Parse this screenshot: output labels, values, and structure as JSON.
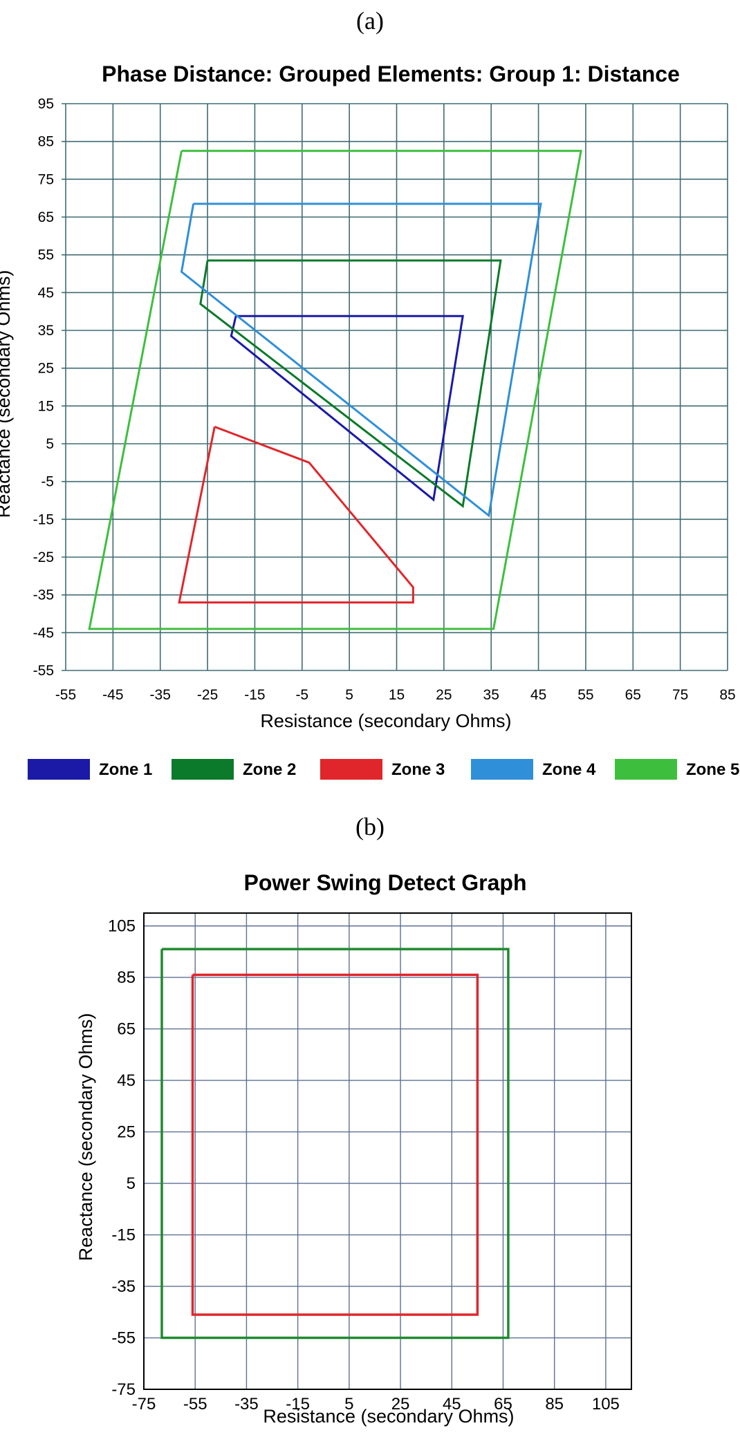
{
  "panels": {
    "a_label": "(a)",
    "b_label": "(b)"
  },
  "chart_data": [
    {
      "type": "line",
      "title": "Phase Distance: Grouped Elements: Group 1: Distance",
      "xlabel": "Resistance (secondary Ohms)",
      "ylabel": "Reactance (secondary Ohms)",
      "xlim": [
        -55,
        85
      ],
      "ylim": [
        -55,
        95
      ],
      "xticks": [
        "-55",
        "-45",
        "-35",
        "-25",
        "-15",
        "-5",
        "5",
        "15",
        "25",
        "35",
        "45",
        "55",
        "65",
        "75",
        "85"
      ],
      "yticks": [
        "95",
        "85",
        "75",
        "65",
        "55",
        "45",
        "35",
        "25",
        "15",
        "5",
        "-5",
        "-15",
        "-25",
        "-35",
        "-45",
        "-55"
      ],
      "grid": true,
      "legend_position": "bottom",
      "series": [
        {
          "name": "Zone 1",
          "color": "#1a1aa6",
          "points": [
            [
              -19,
              38.8
            ],
            [
              29,
              38.8
            ],
            [
              22.8,
              -9.8
            ],
            [
              -20,
              33.5
            ],
            [
              -19,
              38.8
            ]
          ]
        },
        {
          "name": "Zone 2",
          "color": "#0b7a2a",
          "points": [
            [
              -25,
              53.5
            ],
            [
              37,
              53.5
            ],
            [
              29,
              -11.5
            ],
            [
              -26.5,
              42
            ],
            [
              -25,
              53.5
            ]
          ]
        },
        {
          "name": "Zone 3",
          "color": "#e0262b",
          "points": [
            [
              -23.5,
              9.5
            ],
            [
              -3.5,
              0
            ],
            [
              18.5,
              -33
            ],
            [
              18.5,
              -37
            ],
            [
              -31,
              -37
            ],
            [
              -23.5,
              9.5
            ]
          ]
        },
        {
          "name": "Zone 4",
          "color": "#2f8fd8",
          "points": [
            [
              -28,
              68.5
            ],
            [
              45.5,
              68.5
            ],
            [
              34.5,
              -14
            ],
            [
              -30.5,
              50.5
            ],
            [
              -28,
              68.5
            ]
          ]
        },
        {
          "name": "Zone 5",
          "color": "#3dbf3d",
          "points": [
            [
              -30.5,
              82.5
            ],
            [
              54,
              82.5
            ],
            [
              35.5,
              -44
            ],
            [
              -50,
              -44
            ],
            [
              -30.5,
              82.5
            ]
          ]
        }
      ]
    },
    {
      "type": "line",
      "title": "Power Swing Detect Graph",
      "xlabel": "Resistance (secondary Ohms)",
      "ylabel": "Reactance (secondary Ohms)",
      "xlim": [
        -75,
        115
      ],
      "ylim": [
        -75,
        110
      ],
      "xticks": [
        "-75",
        "-55",
        "-35",
        "-15",
        "5",
        "25",
        "45",
        "65",
        "85",
        "105"
      ],
      "yticks": [
        "105",
        "85",
        "65",
        "45",
        "25",
        "5",
        "-15",
        "-35",
        "-55",
        "-75"
      ],
      "grid": true,
      "series": [
        {
          "color": "#1f8a2e",
          "points": [
            [
              -68,
              96
            ],
            [
              67,
              96
            ],
            [
              67,
              -55
            ],
            [
              -68,
              -55
            ],
            [
              -68,
              96
            ]
          ]
        },
        {
          "color": "#e0262b",
          "points": [
            [
              -56,
              86
            ],
            [
              55,
              86
            ],
            [
              55,
              -46
            ],
            [
              -56,
              -46
            ],
            [
              -56,
              86
            ]
          ]
        }
      ]
    }
  ]
}
